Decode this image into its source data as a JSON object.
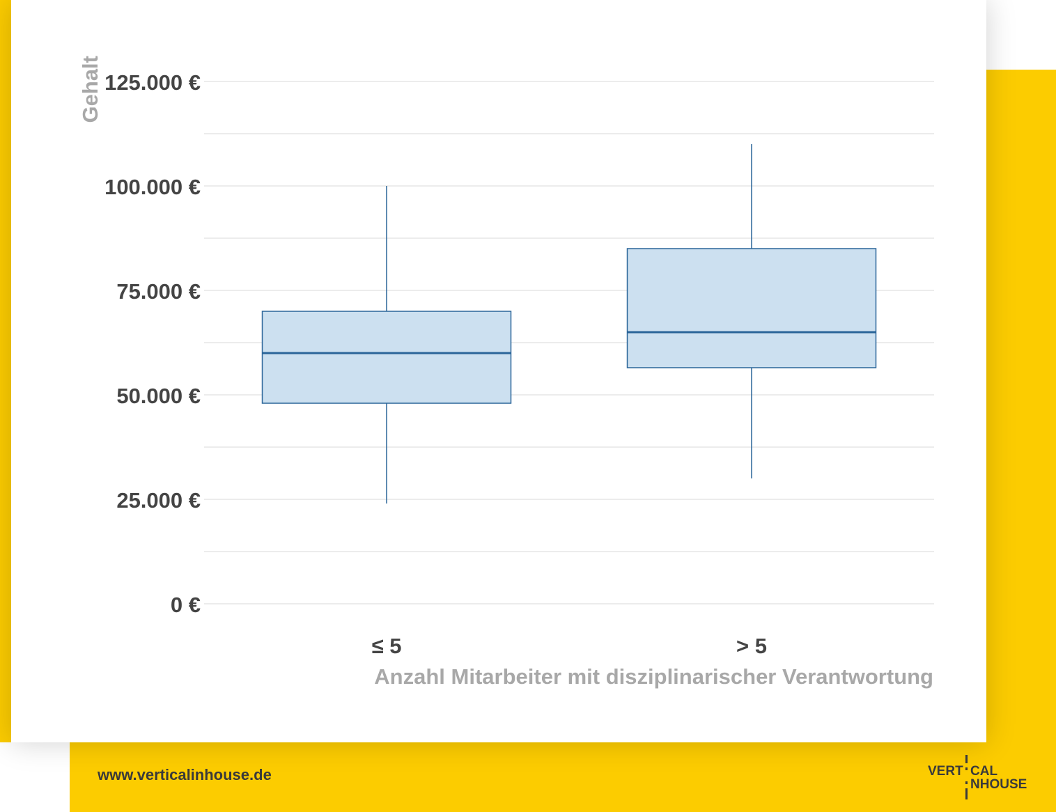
{
  "colors": {
    "accent": "#FCCC00",
    "box_fill": "#CCE0F0",
    "box_stroke": "#2A6599",
    "grid": "#D9D9D9",
    "tick_text": "#444444",
    "axis_title": "#A8A8A8",
    "footer_text": "#3A3A3A"
  },
  "chart_data": {
    "type": "boxplot",
    "ylabel": "Gehalt",
    "xlabel": "Anzahl Mitarbeiter mit disziplinarischer Verantwortung",
    "ylim": [
      0,
      125000
    ],
    "y_ticks": [
      0,
      25000,
      50000,
      75000,
      100000,
      125000
    ],
    "y_tick_labels": [
      "0 €",
      "25.000 €",
      "50.000 €",
      "75.000 €",
      "100.000 €",
      "125.000 €"
    ],
    "grid": true,
    "categories": [
      "≤ 5",
      "> 5"
    ],
    "boxes": [
      {
        "category": "≤ 5",
        "whisker_low": 24000,
        "q1": 48000,
        "median": 60000,
        "q3": 70000,
        "whisker_high": 100000
      },
      {
        "category": "> 5",
        "whisker_low": 30000,
        "q1": 56500,
        "median": 65000,
        "q3": 85000,
        "whisker_high": 110000
      }
    ]
  },
  "footer": {
    "url": "www.verticalinhouse.de"
  },
  "logo": {
    "line1_left": "VERT",
    "line1_right": "CAL",
    "line2_right": "NHOUSE"
  }
}
